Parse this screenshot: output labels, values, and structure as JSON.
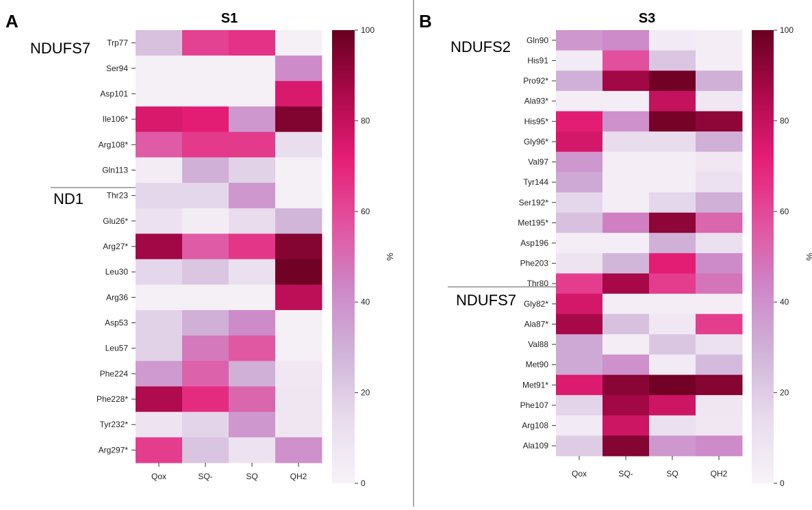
{
  "panels": [
    {
      "letter": "A",
      "groups": [
        {
          "label": "NDUFS7"
        },
        {
          "label": "ND1"
        }
      ]
    },
    {
      "letter": "B",
      "groups": [
        {
          "label": "NDUFS2"
        },
        {
          "label": "NDUFS7"
        }
      ]
    }
  ],
  "colormap": {
    "stops": [
      "#f7f2f8",
      "#e8dced",
      "#d0b4d9",
      "#cd88c8",
      "#e2539f",
      "#e61e76",
      "#ad0a4c",
      "#67001f"
    ],
    "colorbar_label": "%"
  },
  "chart_data": [
    {
      "type": "heatmap",
      "title": "S1",
      "columns": [
        "Qox",
        "SQ-",
        "SQ",
        "QH2"
      ],
      "rows": [
        "Trp77",
        "Ser94",
        "Asp101",
        "Ile106*",
        "Arg108*",
        "Gln113",
        "Thr23",
        "Glu26*",
        "Arg27*",
        "Leu30",
        "Arg36",
        "Asp53",
        "Leu57",
        "Phe224",
        "Phe228*",
        "Tyr232*",
        "Arg297*"
      ],
      "groups": [
        {
          "label": "NDUFS7",
          "rows": [
            0,
            5
          ]
        },
        {
          "label": "ND1",
          "rows": [
            6,
            16
          ]
        }
      ],
      "values": [
        [
          24,
          62,
          66,
          2
        ],
        [
          2,
          2,
          2,
          42
        ],
        [
          2,
          2,
          2,
          75
        ],
        [
          75,
          72,
          38,
          95
        ],
        [
          55,
          64,
          64,
          13
        ],
        [
          4,
          30,
          18,
          2
        ],
        [
          16,
          16,
          38,
          2
        ],
        [
          11,
          4,
          14,
          28
        ],
        [
          88,
          55,
          65,
          94
        ],
        [
          16,
          22,
          12,
          98
        ],
        [
          2,
          2,
          2,
          82
        ],
        [
          18,
          30,
          42,
          2
        ],
        [
          18,
          47,
          56,
          2
        ],
        [
          37,
          53,
          30,
          7
        ],
        [
          85,
          68,
          52,
          8
        ],
        [
          9,
          17,
          38,
          8
        ],
        [
          63,
          23,
          10,
          40
        ]
      ],
      "colorbar": {
        "label": "%",
        "range": [
          0,
          100
        ],
        "ticks": [
          0,
          20,
          40,
          60,
          80,
          100
        ]
      }
    },
    {
      "type": "heatmap",
      "title": "S3",
      "columns": [
        "Qox",
        "SQ-",
        "SQ",
        "QH2"
      ],
      "rows": [
        "Gln90",
        "His91",
        "Pro92*",
        "Ala93*",
        "His95*",
        "Gly96*",
        "Val97",
        "Tyr144",
        "Ser192*",
        "Met195*",
        "Asp196",
        "Phe203",
        "Thr80",
        "Gly82*",
        "Ala87*",
        "Val88",
        "Met90",
        "Met91*",
        "Phe107",
        "Arg108",
        "Ala109"
      ],
      "groups": [
        {
          "label": "NDUFS2",
          "rows": [
            0,
            11
          ]
        },
        {
          "label": "NDUFS7",
          "rows": [
            12,
            20
          ]
        }
      ],
      "values": [
        [
          38,
          42,
          5,
          3
        ],
        [
          5,
          58,
          22,
          3
        ],
        [
          30,
          88,
          98,
          30
        ],
        [
          3,
          3,
          80,
          7
        ],
        [
          72,
          40,
          97,
          92
        ],
        [
          76,
          14,
          14,
          30
        ],
        [
          38,
          3,
          3,
          7
        ],
        [
          32,
          3,
          3,
          11
        ],
        [
          16,
          3,
          16,
          30
        ],
        [
          24,
          45,
          92,
          52
        ],
        [
          3,
          3,
          30,
          12
        ],
        [
          9,
          28,
          72,
          42
        ],
        [
          63,
          87,
          63,
          48
        ],
        [
          76,
          3,
          3,
          3
        ],
        [
          87,
          24,
          7,
          63
        ],
        [
          32,
          3,
          22,
          11
        ],
        [
          32,
          40,
          5,
          26
        ],
        [
          74,
          93,
          98,
          94
        ],
        [
          17,
          88,
          78,
          8
        ],
        [
          5,
          78,
          12,
          7
        ],
        [
          20,
          94,
          38,
          42
        ]
      ],
      "colorbar": {
        "label": "%",
        "range": [
          0,
          100
        ],
        "ticks": [
          0,
          20,
          40,
          60,
          80,
          100
        ]
      }
    }
  ]
}
